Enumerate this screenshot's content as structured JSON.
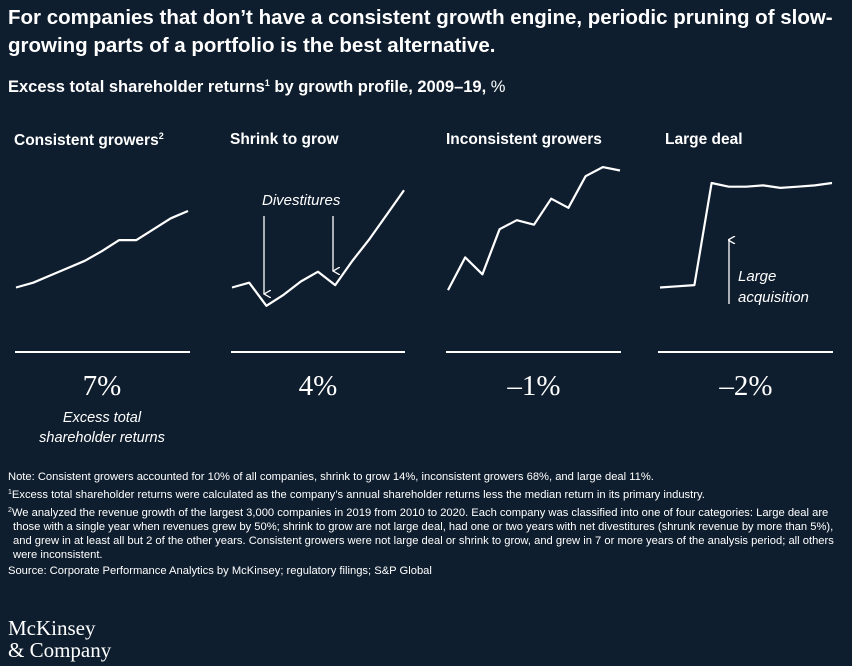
{
  "headline": "For companies that don’t have a consistent growth engine, periodic pruning of slow-growing parts of a portfolio is the best alternative.",
  "subtitle": {
    "text": "Excess total shareholder returns",
    "sup": "1",
    "rest": " by growth profile, 2009–19, ",
    "unit": "%"
  },
  "chart_data": [
    {
      "type": "line",
      "title": "Consistent growers",
      "title_sup": "2",
      "value_label": "7%",
      "value": 7,
      "caption": [
        "Excess total",
        "shareholder returns"
      ],
      "x": [
        0,
        1,
        2,
        3,
        4,
        5,
        6,
        7,
        8,
        9,
        10
      ],
      "y": [
        0,
        4,
        10,
        16,
        22,
        30,
        39,
        39,
        48,
        57,
        63
      ],
      "ylim": [
        -30,
        100
      ]
    },
    {
      "type": "line",
      "title": "Shrink to grow",
      "title_sup": "",
      "value_label": "4%",
      "value": 4,
      "annotation": "Divestitures",
      "x": [
        0,
        1,
        2,
        3,
        4,
        5,
        6,
        7,
        8,
        9,
        10
      ],
      "y": [
        0,
        4,
        -15,
        -6,
        5,
        13,
        2,
        22,
        40,
        60,
        80
      ],
      "ylim": [
        -30,
        100
      ]
    },
    {
      "type": "line",
      "title": "Inconsistent growers",
      "title_sup": "",
      "value_label": "–1%",
      "value": -1,
      "x": [
        0,
        1,
        2,
        3,
        4,
        5,
        6,
        7,
        8,
        9,
        10
      ],
      "y": [
        0,
        29,
        14,
        54,
        62,
        58,
        81,
        73,
        101,
        109,
        106
      ],
      "ylim": [
        -30,
        110
      ]
    },
    {
      "type": "line",
      "title": "Large deal",
      "title_sup": "",
      "value_label": "–2%",
      "value": -2,
      "annotation": [
        "Large",
        "acquisition"
      ],
      "x": [
        0,
        1,
        2,
        3,
        4,
        5,
        6,
        7,
        8,
        9,
        10
      ],
      "y": [
        0,
        1,
        2,
        86,
        83,
        83,
        84,
        82,
        83,
        84,
        86
      ],
      "ylim": [
        -30,
        100
      ]
    }
  ],
  "notes": [
    "Note: Consistent growers accounted for 10% of all companies, shrink to grow 14%, inconsistent growers 68%, and large deal 11%."
  ],
  "footnotes": [
    {
      "sup": "1",
      "text": "Excess total shareholder returns were calculated as the company’s annual shareholder returns less the median return in its primary industry."
    },
    {
      "sup": "2",
      "text": "We analyzed the revenue growth of the largest 3,000 companies in 2019 from 2010 to 2020. Each company was classified into one of four categories: Large deal are those with a single year when revenues grew by 50%; shrink to grow are not large deal, had one or two years with net divestitures (shrunk revenue by more than 5%), and grew in at least all but 2 of the other years. Consistent growers were not large deal or shrink to grow, and grew in 7 or more years of the analysis period; all others were inconsistent."
    }
  ],
  "source": "Source: Corporate Performance Analytics by McKinsey; regulatory filings; S&P Global",
  "logo": [
    "McKinsey",
    "& Company"
  ],
  "colors": {
    "background": "#0f1e2e",
    "foreground": "#ffffff"
  }
}
